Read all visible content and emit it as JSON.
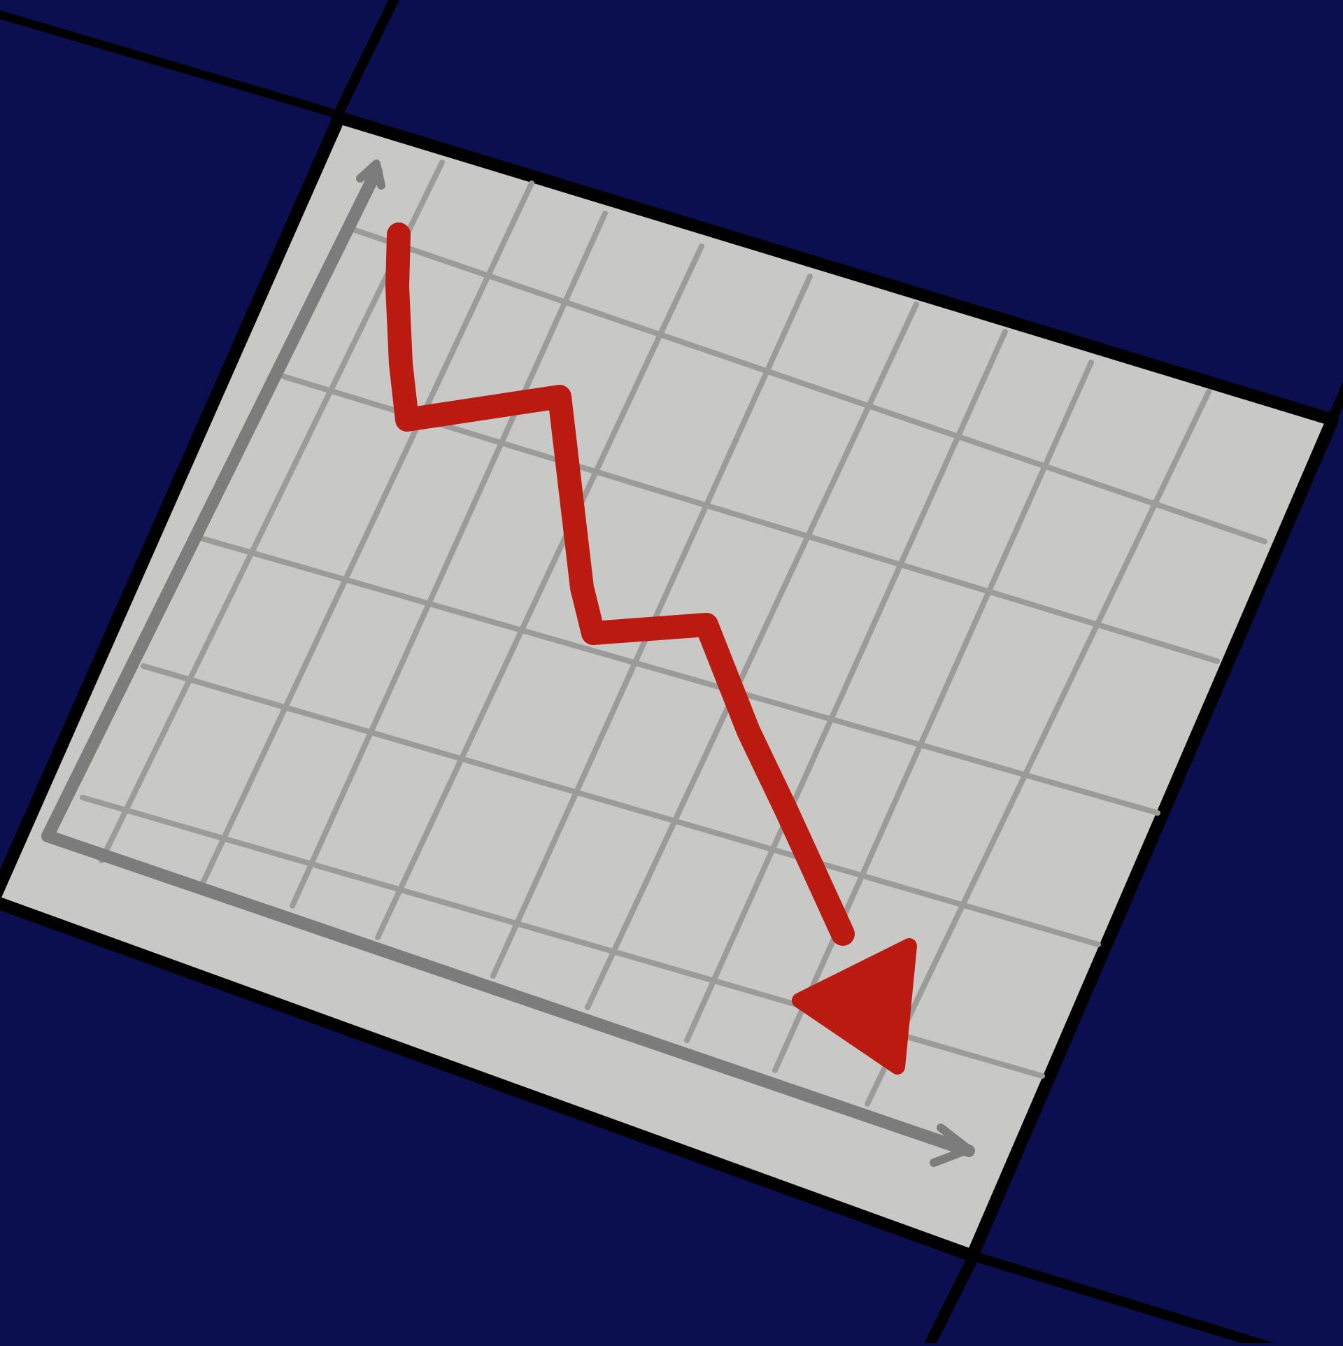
{
  "colors": {
    "background": "#0b0f4f",
    "frame": "#000000",
    "panel": "#c8c8c6",
    "grid": "#9b9b99",
    "axis": "#7c7c7c",
    "trend": "#bb1a10"
  },
  "illustration": {
    "subject": "downward-trend-chart-icon",
    "trend_direction": "down",
    "axis_arrows": [
      "y-axis-arrow-icon",
      "x-axis-arrow-icon"
    ]
  }
}
